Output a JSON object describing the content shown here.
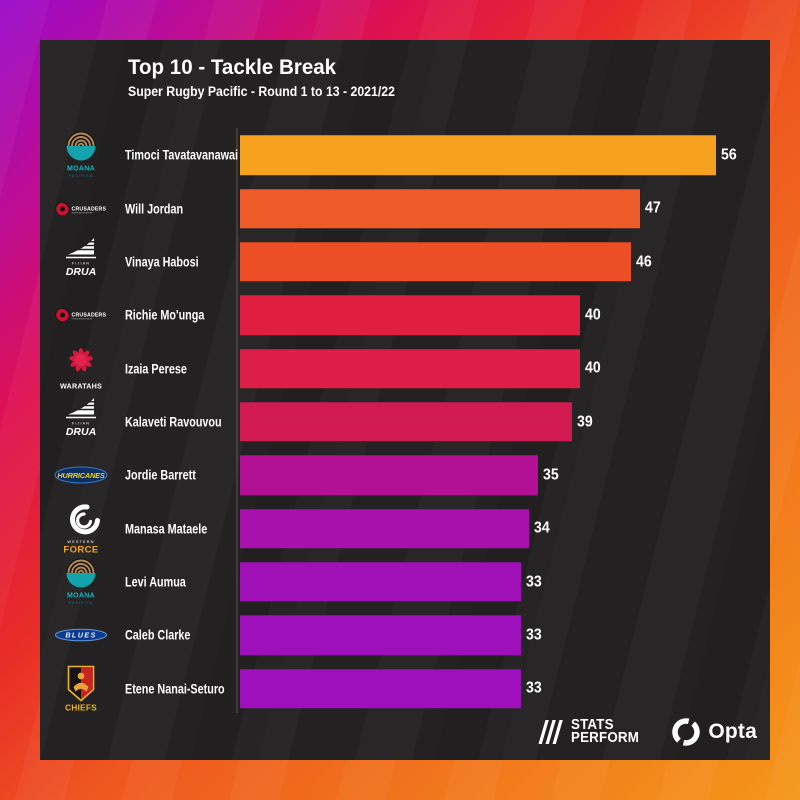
{
  "chart_data": {
    "type": "bar",
    "orientation": "horizontal",
    "title": "Top 10 - Tackle Break",
    "subtitle": "Super Rugby Pacific - Round 1 to 13 - 2021/22",
    "xlim": [
      0,
      56
    ],
    "grid": false,
    "legend": false,
    "players": [
      {
        "name": "Timoci Tavatavanawai",
        "team": "Moana Pasifika",
        "value": 56,
        "color": "#F6A21E"
      },
      {
        "name": "Will Jordan",
        "team": "Crusaders",
        "value": 47,
        "color": "#EE5A28"
      },
      {
        "name": "Vinaya Habosi",
        "team": "Fijian Drua",
        "value": 46,
        "color": "#EC4E25"
      },
      {
        "name": "Richie Mo'unga",
        "team": "Crusaders",
        "value": 40,
        "color": "#E01F40"
      },
      {
        "name": "Izaia Perese",
        "team": "Waratahs",
        "value": 40,
        "color": "#DD1E46"
      },
      {
        "name": "Kalaveti Ravouvou",
        "team": "Fijian Drua",
        "value": 39,
        "color": "#D21A52"
      },
      {
        "name": "Jordie Barrett",
        "team": "Hurricanes",
        "value": 35,
        "color": "#B21195"
      },
      {
        "name": "Manasa Mataele",
        "team": "Western Force",
        "value": 34,
        "color": "#A811AB"
      },
      {
        "name": "Levi Aumua",
        "team": "Moana Pasifika",
        "value": 33,
        "color": "#A010B7"
      },
      {
        "name": "Caleb Clarke",
        "team": "Blues",
        "value": 33,
        "color": "#9E10BA"
      },
      {
        "name": "Etene Nanai-Seturo",
        "team": "Chiefs",
        "value": 33,
        "color": "#9D10BB"
      }
    ]
  },
  "footer": {
    "stats_perform_line1": "STATS",
    "stats_perform_line2": "PERFORM",
    "opta": "Opta"
  },
  "colors": {
    "card_bg": "#232122",
    "text": "#FFFFFF",
    "frame_gradient": [
      "#9A0ACA",
      "#C00D8E",
      "#DE1150",
      "#E82B28",
      "#EE5620",
      "#F5961A"
    ]
  }
}
